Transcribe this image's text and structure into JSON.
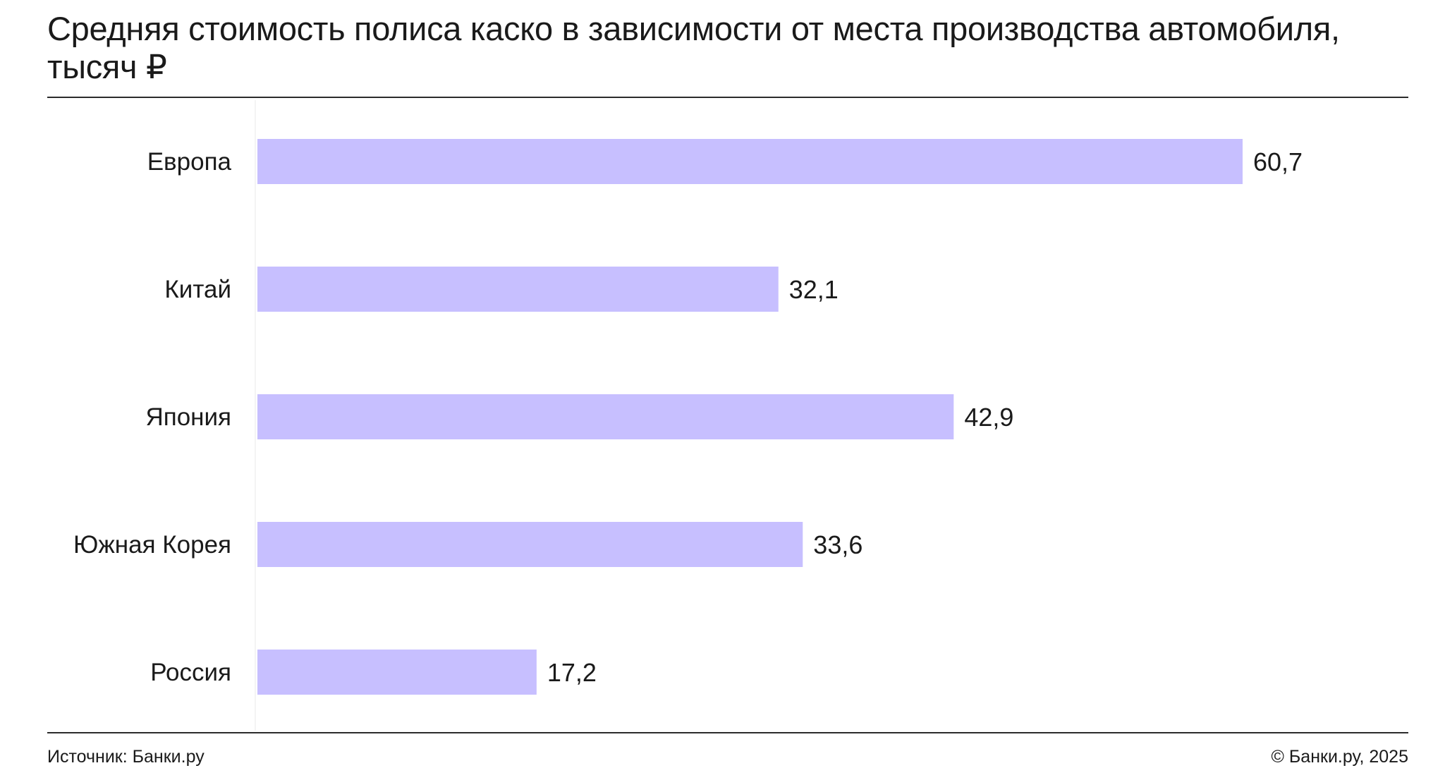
{
  "title": "Средняя стоимость полиса каско в зависимости от места производства автомобиля, тысяч ₽",
  "footer": {
    "source": "Источник: Банки.ру",
    "copyright": "© Банки.ру, 2025"
  },
  "chart_data": {
    "type": "bar",
    "orientation": "horizontal",
    "title": "Средняя стоимость полиса каско в зависимости от места производства автомобиля, тысяч ₽",
    "categories": [
      "Европа",
      "Китай",
      "Япония",
      "Южная Корея",
      "Россия"
    ],
    "values": [
      60.7,
      32.1,
      42.9,
      33.6,
      17.2
    ],
    "value_labels": [
      "60,7",
      "32,1",
      "42,9",
      "33,6",
      "17,2"
    ],
    "xlim": [
      0,
      60.7
    ],
    "grid": false,
    "legend": "none",
    "bar_color": "#c7bfff"
  }
}
